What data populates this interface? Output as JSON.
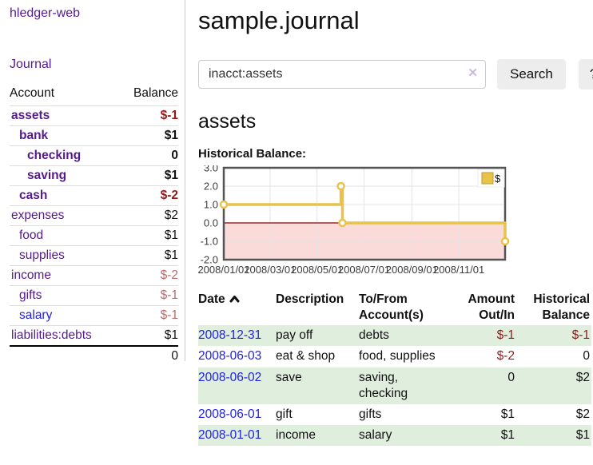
{
  "sidebar": {
    "brand": "hledger-web",
    "journal_link": "Journal",
    "accounts_table": {
      "col_account": "Account",
      "col_balance": "Balance",
      "rows": [
        {
          "account": "assets",
          "indent": 0,
          "bold": true,
          "balance": "$-1",
          "balance_class": "neg-strong",
          "link": "purple"
        },
        {
          "account": "bank",
          "indent": 1,
          "bold": true,
          "balance": "$1",
          "balance_class": "",
          "link": "purple"
        },
        {
          "account": "checking",
          "indent": 2,
          "bold": true,
          "balance": "0",
          "balance_class": "",
          "link": "purple"
        },
        {
          "account": "saving",
          "indent": 2,
          "bold": true,
          "balance": "$1",
          "balance_class": "",
          "link": "purple"
        },
        {
          "account": "cash",
          "indent": 1,
          "bold": true,
          "balance": "$-2",
          "balance_class": "neg-strong",
          "link": "purple"
        },
        {
          "account": "expenses",
          "indent": 0,
          "bold": false,
          "balance": "$2",
          "balance_class": "",
          "link": "purple"
        },
        {
          "account": "food",
          "indent": 1,
          "bold": false,
          "balance": "$1",
          "balance_class": "",
          "link": "purple"
        },
        {
          "account": "supplies",
          "indent": 1,
          "bold": false,
          "balance": "$1",
          "balance_class": "",
          "link": "purple"
        },
        {
          "account": "income",
          "indent": 0,
          "bold": false,
          "balance": "$-2",
          "balance_class": "neg-muted",
          "link": "purple"
        },
        {
          "account": "gifts",
          "indent": 1,
          "bold": false,
          "balance": "$-1",
          "balance_class": "neg-muted",
          "link": "purple"
        },
        {
          "account": "salary",
          "indent": 1,
          "bold": false,
          "balance": "$-1",
          "balance_class": "neg-muted",
          "link": "blue"
        },
        {
          "account": "liabilities:debts",
          "indent": 0,
          "bold": false,
          "balance": "$1",
          "balance_class": "",
          "link": "purple"
        }
      ],
      "total": "0"
    }
  },
  "main": {
    "title": "sample.journal",
    "search": {
      "value": "inacct:assets",
      "clear_icon": "✕",
      "button_label": "Search",
      "help_label": "?"
    },
    "account_heading": "assets",
    "table": {
      "headers": {
        "date": "Date",
        "description": "Description",
        "accounts": [
          "To/From",
          "Account(s)"
        ],
        "amount": [
          "Amount",
          "Out/In"
        ],
        "balance": [
          "Historical",
          "Balance"
        ]
      },
      "sort": "ascending",
      "rows": [
        {
          "date": "2008-12-31",
          "description": "pay off",
          "accounts": "debts",
          "amount": "$-1",
          "amount_class": "neg-strong",
          "balance": "$-1",
          "balance_class": "neg-strong",
          "shaded": true
        },
        {
          "date": "2008-06-03",
          "description": "eat & shop",
          "accounts": "food, supplies",
          "amount": "$-2",
          "amount_class": "neg-strong",
          "balance": "0",
          "balance_class": "",
          "shaded": false
        },
        {
          "date": "2008-06-02",
          "description": "save",
          "accounts": "saving, checking",
          "amount": "0",
          "amount_class": "",
          "balance": "$2",
          "balance_class": "",
          "shaded": true
        },
        {
          "date": "2008-06-01",
          "description": "gift",
          "accounts": "gifts",
          "amount": "$1",
          "amount_class": "",
          "balance": "$2",
          "balance_class": "",
          "shaded": false
        },
        {
          "date": "2008-01-01",
          "description": "income",
          "accounts": "salary",
          "amount": "$1",
          "amount_class": "",
          "balance": "$1",
          "balance_class": "",
          "shaded": true
        }
      ]
    }
  },
  "chart_data": {
    "type": "line",
    "step": true,
    "title": "Historical Balance:",
    "series": [
      {
        "name": "$",
        "points": [
          [
            "2008-01-01",
            1
          ],
          [
            "2008-06-01",
            2
          ],
          [
            "2008-06-03",
            0
          ],
          [
            "2008-12-31",
            -1
          ]
        ]
      }
    ],
    "x_range": [
      "2008-01-01",
      "2008-12-31"
    ],
    "y_range": [
      -2,
      3
    ],
    "x_ticks": [
      {
        "date": "2008-01-01",
        "label": "2008/01/01"
      },
      {
        "date": "2008-03-01",
        "label": "2008/03/01"
      },
      {
        "date": "2008-05-01",
        "label": "2008/05/01"
      },
      {
        "date": "2008-07-01",
        "label": "2008/07/01"
      },
      {
        "date": "2008-09-01",
        "label": "2008/09/01"
      },
      {
        "date": "2008-11-01",
        "label": "2008/11/01"
      }
    ],
    "y_ticks": [
      {
        "value": -2,
        "label": "-2.0"
      },
      {
        "value": -1,
        "label": "-1.0"
      },
      {
        "value": 0,
        "label": "0.0"
      },
      {
        "value": 1,
        "label": "1.0"
      },
      {
        "value": 2,
        "label": "2.0"
      },
      {
        "value": 3,
        "label": "3.0"
      }
    ],
    "legend": {
      "label": "$",
      "position": "top-right"
    },
    "grid": true,
    "colors": {
      "line": "#e8c34b",
      "marker_fill": "#ffffff",
      "negative_fill": "#fbdada",
      "zero_line": "#8b0000",
      "grid": "#e3e3e3",
      "frame": "#545454",
      "tick_text": "#3c3c3c"
    }
  }
}
